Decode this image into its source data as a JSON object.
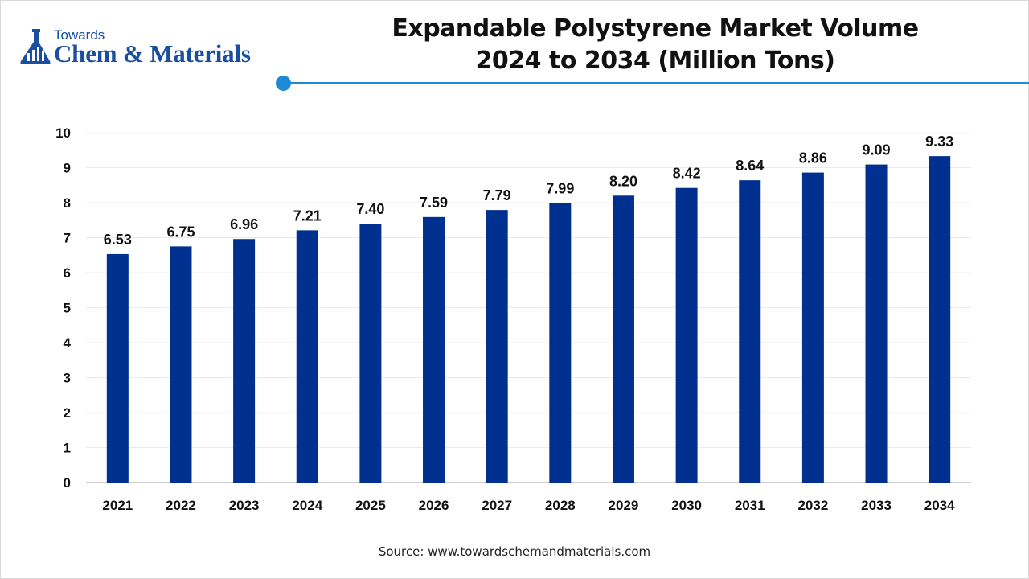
{
  "logo": {
    "top_text": "Towards",
    "main_text": "Chem & Materials"
  },
  "header": {
    "title_line1": "Expandable Polystyrene Market Volume",
    "title_line2": "2024 to 2034 (Million Tons)"
  },
  "colors": {
    "bar": "#00308f",
    "accent": "#1c8ad6",
    "brand": "#1a4fa0"
  },
  "chart_data": {
    "type": "bar",
    "categories": [
      "2021",
      "2022",
      "2023",
      "2024",
      "2025",
      "2026",
      "2027",
      "2028",
      "2029",
      "2030",
      "2031",
      "2032",
      "2033",
      "2034"
    ],
    "values": [
      6.53,
      6.75,
      6.96,
      7.21,
      7.4,
      7.59,
      7.79,
      7.99,
      8.2,
      8.42,
      8.64,
      8.86,
      9.09,
      9.33
    ],
    "value_labels": [
      "6.53",
      "6.75",
      "6.96",
      "7.21",
      "7.40",
      "7.59",
      "7.79",
      "7.99",
      "8.20",
      "8.42",
      "8.64",
      "8.86",
      "9.09",
      "9.33"
    ],
    "ylim": [
      0,
      10
    ],
    "yticks": [
      "0",
      "1",
      "2",
      "3",
      "4",
      "5",
      "6",
      "7",
      "8",
      "9",
      "10"
    ],
    "grid": true,
    "legend": "none"
  },
  "footer": {
    "source": "Source: www.towardschemandmaterials.com"
  }
}
